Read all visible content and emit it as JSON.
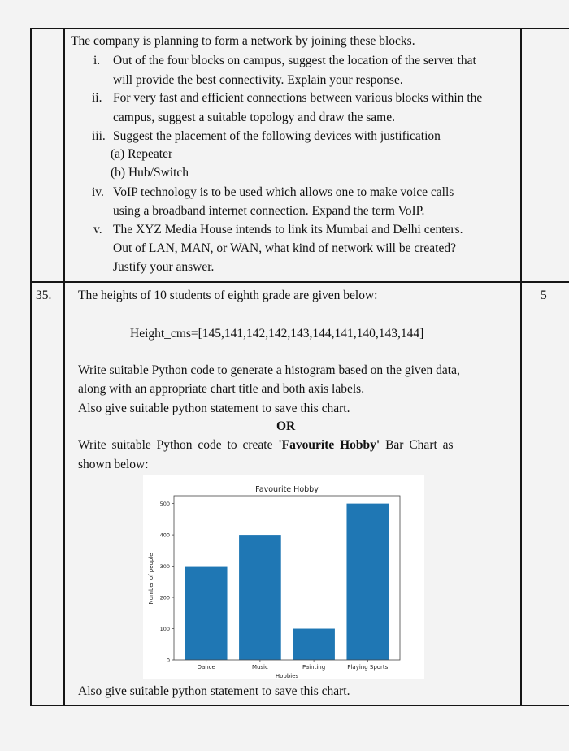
{
  "prev_question": {
    "intro": "The company is planning to form a network by joining these blocks.",
    "items": [
      {
        "num": "i.",
        "lines": [
          "Out of the four blocks on campus, suggest the location of the server that",
          "will provide the best connectivity. Explain your response."
        ]
      },
      {
        "num": "ii.",
        "lines": [
          "For very fast and efficient connections between various blocks within the",
          "campus,  suggest a suitable topology and draw the same."
        ]
      },
      {
        "num": "iii.",
        "lines": [
          "Suggest the placement of the following devices with justification",
          "(a) Repeater",
          "(b) Hub/Switch"
        ]
      },
      {
        "num": "iv.",
        "lines": [
          "VoIP technology is to be used which allows one to make voice calls",
          "using a broadband internet connection. Expand the term VoIP."
        ]
      },
      {
        "num": "v.",
        "lines": [
          "The XYZ Media House intends to link its Mumbai and Delhi centers.",
          "Out of LAN, MAN, or WAN, what kind of network will be created?",
          "Justify your answer."
        ]
      }
    ]
  },
  "question35": {
    "number": "35.",
    "marks": "5",
    "intro": "The heights of 10 students of eighth grade are given below:",
    "data_line": "Height_cms=[145,141,142,142,143,144,141,140,143,144]",
    "task1": [
      "Write suitable Python code to generate a histogram based on the given data,",
      "along with an appropriate chart title and both axis labels.",
      "Also give suitable python statement to save this chart."
    ],
    "or": "OR",
    "task2_pre": "Write suitable Python code to create ",
    "task2_bold": "'Favourite Hobby'",
    "task2_post": " Bar Chart as",
    "task2_line2": "shown below:",
    "closing": "Also give suitable python statement to save this chart."
  },
  "chart_data": {
    "type": "bar",
    "title": "Favourite Hobby",
    "xlabel": "Hobbies",
    "ylabel": "Number of people",
    "categories": [
      "Dance",
      "Music",
      "Painting",
      "Playing Sports"
    ],
    "values": [
      300,
      400,
      100,
      500
    ],
    "yticks": [
      "0",
      "100",
      "200",
      "300",
      "400",
      "500"
    ],
    "ylim": [
      0,
      525
    ],
    "bar_color": "#1f77b4",
    "grid": false
  }
}
